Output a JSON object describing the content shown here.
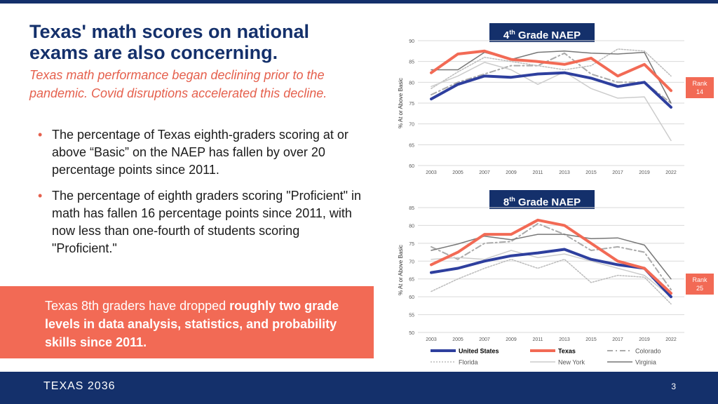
{
  "slide": {
    "title": "Texas' math scores on national exams are also concerning.",
    "subtitle": "Texas math performance began declining prior to the pandemic. Covid disruptions accelerated this decline.",
    "bullets": [
      "The percentage of Texas eighth-graders scoring at or above “Basic” on the NAEP has fallen by over 20 percentage points since 2011.",
      "The percentage of eighth graders scoring \"Proficient\" in math has fallen 16 percentage points since 2011, with now less than one-fourth of students scoring \"Proficient.\""
    ],
    "callout": {
      "pre": "Texas 8th graders have dropped ",
      "bold": "roughly two grade levels in data analysis, statistics, and probability skills since 2011."
    },
    "footer": {
      "logo": "TEXAS 2036",
      "page": "3"
    },
    "colors": {
      "navy": "#14306b",
      "coral": "#f26a55"
    }
  },
  "chart_data": [
    {
      "type": "line",
      "title_main": "4",
      "title_sup": "th",
      "title_rest": " Grade NAEP",
      "xlabel": "",
      "ylabel": "% At or Above Basic",
      "ylim": [
        60,
        90
      ],
      "yticks": [
        60,
        65,
        70,
        75,
        80,
        85,
        90
      ],
      "categories": [
        "2003",
        "2005",
        "2007",
        "2009",
        "2011",
        "2013",
        "2015",
        "2017",
        "2019",
        "2022"
      ],
      "rank": {
        "line1": "Rank",
        "line2": "14"
      },
      "series": [
        {
          "name": "United States",
          "color": "#2e3f9e",
          "width": 4,
          "dash": "",
          "values": [
            76,
            79.5,
            81.5,
            81.2,
            82,
            82.3,
            81,
            79,
            80,
            74
          ]
        },
        {
          "name": "Texas",
          "color": "#f26a55",
          "width": 4,
          "dash": "",
          "values": [
            82.3,
            86.8,
            87.5,
            85.5,
            85,
            84.3,
            85.8,
            81.5,
            84.3,
            78
          ]
        },
        {
          "name": "Colorado",
          "color": "#aaaaaa",
          "width": 2,
          "dash": "8,4,2,4",
          "values": [
            77,
            80,
            82,
            84,
            84,
            87,
            82,
            80,
            80,
            75
          ]
        },
        {
          "name": "Florida",
          "color": "#bbbbbb",
          "width": 1.5,
          "dash": "2,2",
          "values": [
            78.5,
            82.5,
            86,
            85,
            84,
            83,
            84,
            88,
            87.5,
            81.5
          ]
        },
        {
          "name": "New York",
          "color": "#cccccc",
          "width": 1.5,
          "dash": "",
          "values": [
            79,
            81.5,
            84.8,
            83,
            79.5,
            82.5,
            78.5,
            76.2,
            76.5,
            66
          ]
        },
        {
          "name": "Virginia",
          "color": "#777777",
          "width": 1.5,
          "dash": "",
          "values": [
            83,
            83,
            87.2,
            85.5,
            87.2,
            87.5,
            87,
            86.8,
            87.2,
            75
          ]
        }
      ]
    },
    {
      "type": "line",
      "title_main": "8",
      "title_sup": "th",
      "title_rest": " Grade NAEP",
      "xlabel": "",
      "ylabel": "% At or Above Basic",
      "ylim": [
        50,
        85
      ],
      "yticks": [
        50,
        55,
        60,
        65,
        70,
        75,
        80,
        85
      ],
      "categories": [
        "2003",
        "2005",
        "2007",
        "2009",
        "2011",
        "2013",
        "2015",
        "2017",
        "2019",
        "2022"
      ],
      "rank": {
        "line1": "Rank",
        "line2": "25"
      },
      "series": [
        {
          "name": "United States",
          "color": "#2e3f9e",
          "width": 4,
          "dash": "",
          "values": [
            66.8,
            68,
            70,
            71.5,
            72.3,
            73.3,
            70.5,
            69,
            68,
            60
          ]
        },
        {
          "name": "Texas",
          "color": "#f26a55",
          "width": 4,
          "dash": "",
          "values": [
            69,
            72.5,
            77.5,
            77.5,
            81.5,
            80,
            75,
            70,
            68,
            61
          ]
        },
        {
          "name": "Colorado",
          "color": "#aaaaaa",
          "width": 2,
          "dash": "8,4,2,4",
          "values": [
            74,
            70.5,
            75,
            75.5,
            80.5,
            77.5,
            73,
            74,
            72.5,
            62
          ]
        },
        {
          "name": "Florida",
          "color": "#bbbbbb",
          "width": 1.5,
          "dash": "2,2",
          "values": [
            61.5,
            65,
            68,
            70.5,
            68,
            70.5,
            64,
            66,
            65.5,
            58
          ]
        },
        {
          "name": "New York",
          "color": "#cccccc",
          "width": 1.5,
          "dash": "",
          "values": [
            70.5,
            71,
            70.5,
            73,
            71,
            72,
            70,
            68,
            66,
            60
          ]
        },
        {
          "name": "Virginia",
          "color": "#777777",
          "width": 1.5,
          "dash": "",
          "values": [
            73,
            74.8,
            77,
            76,
            77.5,
            77.5,
            76.3,
            76.5,
            74.5,
            65
          ]
        }
      ]
    }
  ]
}
